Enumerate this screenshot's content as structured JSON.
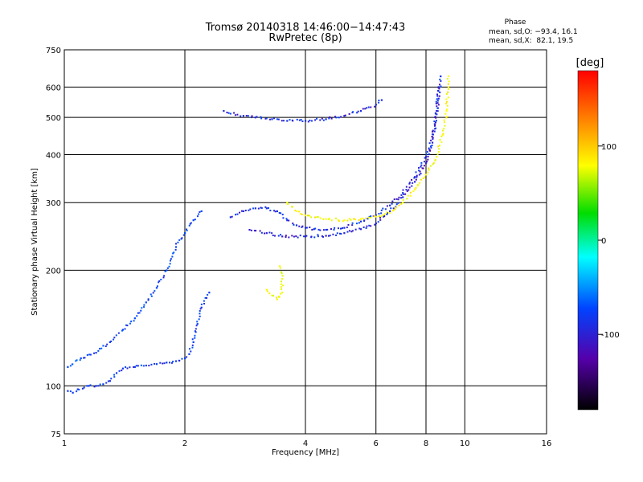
{
  "chart_data": {
    "type": "scatter",
    "title": "Tromsø 20140318 14:46:00−14:47:43",
    "subtitle": "RwPretec (8p)",
    "phase_box": {
      "heading": "Phase",
      "line_o": "mean, sd,O: −93.4, 16.1",
      "line_x": "mean, sd,X:  82.1, 19.5"
    },
    "xlabel": "Frequency [MHz]",
    "ylabel": "Stationary phase Virtual Height [km]",
    "x_scale": "log",
    "y_scale": "log",
    "xlim": [
      1,
      16
    ],
    "ylim": [
      75,
      750
    ],
    "xticks": [
      1,
      2,
      4,
      6,
      8,
      10,
      16
    ],
    "xtick_labels": [
      "1",
      "2",
      "4",
      "6",
      "8",
      "10",
      "16"
    ],
    "yticks": [
      75,
      100,
      200,
      300,
      400,
      500,
      600,
      750
    ],
    "ytick_labels": [
      "75",
      "100",
      "200",
      "300",
      "400",
      "500",
      "600",
      "750"
    ],
    "grid": true,
    "colorbar": {
      "label": "[deg]",
      "range": [
        -180,
        180
      ],
      "ticks": [
        100,
        0,
        -100
      ],
      "tick_labels": [
        "100",
        "0",
        "-100"
      ]
    },
    "traces": [
      {
        "phase": -105,
        "points": [
          [
            1.02,
            97
          ],
          [
            1.05,
            96
          ],
          [
            1.08,
            98
          ],
          [
            1.12,
            99
          ],
          [
            1.15,
            100
          ],
          [
            1.2,
            100
          ],
          [
            1.25,
            101
          ],
          [
            1.3,
            103
          ],
          [
            1.35,
            108
          ],
          [
            1.4,
            111
          ],
          [
            1.5,
            112
          ],
          [
            1.6,
            113
          ],
          [
            1.7,
            114
          ],
          [
            1.8,
            115
          ],
          [
            1.9,
            116
          ],
          [
            2.0,
            118
          ],
          [
            2.05,
            121
          ],
          [
            2.1,
            130
          ],
          [
            2.15,
            145
          ],
          [
            2.2,
            160
          ],
          [
            2.3,
            175
          ]
        ]
      },
      {
        "phase": -110,
        "points": [
          [
            2.6,
            275
          ],
          [
            2.8,
            285
          ],
          [
            3.0,
            290
          ],
          [
            3.2,
            290
          ],
          [
            3.4,
            285
          ],
          [
            3.6,
            270
          ],
          [
            3.8,
            262
          ],
          [
            4.0,
            258
          ],
          [
            4.2,
            256
          ],
          [
            4.5,
            255
          ],
          [
            5.0,
            258
          ],
          [
            5.5,
            268
          ],
          [
            6.0,
            278
          ],
          [
            6.5,
            295
          ],
          [
            7.0,
            318
          ],
          [
            7.5,
            350
          ],
          [
            8.0,
            395
          ],
          [
            8.4,
            460
          ],
          [
            8.6,
            560
          ],
          [
            8.7,
            640
          ]
        ]
      },
      {
        "phase": -115,
        "points": [
          [
            2.9,
            255
          ],
          [
            3.2,
            250
          ],
          [
            3.5,
            245
          ],
          [
            4.0,
            245
          ],
          [
            4.5,
            246
          ],
          [
            5.0,
            250
          ],
          [
            5.5,
            256
          ],
          [
            6.0,
            265
          ],
          [
            6.5,
            285
          ],
          [
            7.0,
            310
          ],
          [
            7.5,
            340
          ],
          [
            8.0,
            380
          ],
          [
            8.3,
            430
          ],
          [
            8.5,
            520
          ],
          [
            8.6,
            600
          ]
        ]
      },
      {
        "phase": 100,
        "points": [
          [
            3.6,
            300
          ],
          [
            3.8,
            285
          ],
          [
            4.0,
            278
          ],
          [
            4.5,
            272
          ],
          [
            5.0,
            270
          ],
          [
            5.5,
            272
          ],
          [
            6.0,
            276
          ],
          [
            6.5,
            282
          ],
          [
            7.0,
            300
          ],
          [
            7.5,
            325
          ],
          [
            8.0,
            355
          ],
          [
            8.5,
            395
          ],
          [
            8.8,
            450
          ],
          [
            9.0,
            520
          ],
          [
            9.1,
            600
          ],
          [
            9.1,
            640
          ]
        ]
      },
      {
        "phase": -110,
        "points": [
          [
            2.5,
            520
          ],
          [
            2.8,
            505
          ],
          [
            3.0,
            500
          ],
          [
            3.3,
            495
          ],
          [
            3.6,
            490
          ],
          [
            4.0,
            490
          ],
          [
            4.5,
            495
          ],
          [
            5.0,
            505
          ],
          [
            5.5,
            520
          ],
          [
            6.0,
            540
          ],
          [
            6.2,
            555
          ]
        ]
      },
      {
        "phase": -100,
        "points": [
          [
            1.02,
            112
          ],
          [
            1.1,
            118
          ],
          [
            1.2,
            122
          ],
          [
            1.3,
            130
          ],
          [
            1.4,
            140
          ],
          [
            1.5,
            150
          ],
          [
            1.6,
            165
          ],
          [
            1.7,
            180
          ],
          [
            1.8,
            200
          ],
          [
            1.9,
            230
          ],
          [
            2.0,
            250
          ],
          [
            2.1,
            270
          ],
          [
            2.2,
            285
          ]
        ]
      },
      {
        "phase": 95,
        "points": [
          [
            3.2,
            178
          ],
          [
            3.3,
            172
          ],
          [
            3.4,
            168
          ],
          [
            3.5,
            175
          ],
          [
            3.5,
            190
          ],
          [
            3.45,
            205
          ]
        ]
      }
    ]
  }
}
